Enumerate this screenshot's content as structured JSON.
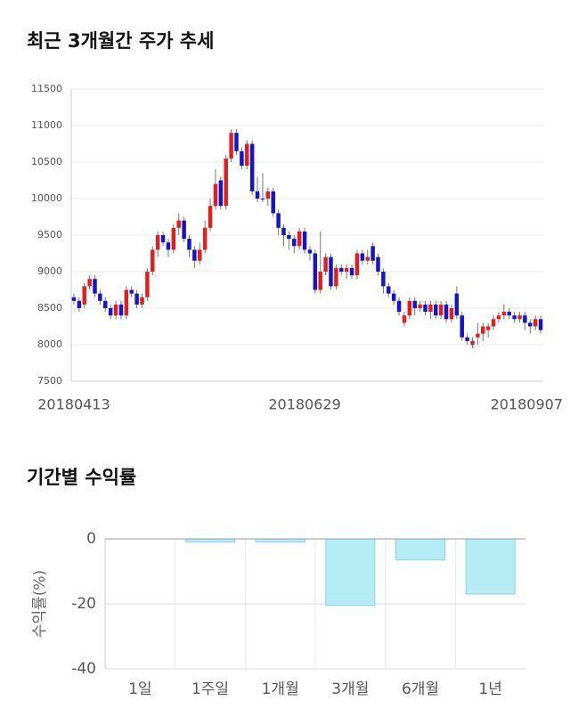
{
  "chart_data": [
    {
      "type": "candlestick",
      "title": "최근 3개월간 주가 추세",
      "categories": [
        "20180413",
        null,
        null,
        null,
        null,
        null,
        null,
        null,
        null,
        null,
        null,
        null,
        null,
        null,
        null,
        null,
        null,
        null,
        null,
        null,
        null,
        null,
        null,
        null,
        null,
        null,
        null,
        null,
        null,
        null,
        null,
        null,
        null,
        null,
        null,
        null,
        null,
        null,
        null,
        null,
        null,
        null,
        null,
        null,
        "20180629",
        null,
        null,
        null,
        null,
        null,
        null,
        null,
        null,
        null,
        null,
        null,
        null,
        null,
        null,
        null,
        null,
        null,
        null,
        null,
        null,
        null,
        null,
        null,
        null,
        null,
        null,
        null,
        null,
        null,
        null,
        null,
        null,
        null,
        null,
        null,
        null,
        null,
        null,
        null,
        null,
        null,
        null,
        null,
        null,
        "20180907"
      ],
      "open": [
        8650,
        8600,
        8550,
        8800,
        8900,
        8700,
        8600,
        8500,
        8400,
        8550,
        8400,
        8750,
        8700,
        8550,
        8650,
        9000,
        9300,
        9500,
        9400,
        9300,
        9600,
        9700,
        9450,
        9300,
        9150,
        9300,
        9600,
        9900,
        10250,
        9900,
        10550,
        10900,
        10650,
        10450,
        10750,
        10100,
        10000,
        10000,
        10100,
        9800,
        9600,
        9500,
        9450,
        9350,
        9550,
        9300,
        9250,
        8750,
        9000,
        9200,
        8800,
        9050,
        9000,
        9050,
        8950,
        9250,
        9150,
        9350,
        9200,
        9000,
        8800,
        8700,
        8600,
        8300,
        8400,
        8600,
        8500,
        8550,
        8450,
        8550,
        8400,
        8550,
        8350,
        8700,
        8400,
        8100,
        8000,
        8100,
        8150,
        8200,
        8250,
        8350,
        8400,
        8450,
        8400,
        8350,
        8400,
        8300,
        8250,
        8350
      ],
      "high": [
        8700,
        8650,
        8850,
        8950,
        8950,
        8750,
        8650,
        8550,
        8600,
        8600,
        8800,
        8800,
        8750,
        8700,
        9050,
        9350,
        9550,
        9550,
        9450,
        9650,
        9800,
        9750,
        9500,
        9350,
        9400,
        9700,
        10000,
        10400,
        10300,
        10600,
        10950,
        10950,
        10700,
        10800,
        10800,
        10300,
        10350,
        10150,
        10150,
        9850,
        9650,
        9550,
        9500,
        9600,
        9600,
        9350,
        9300,
        9550,
        9250,
        9250,
        9100,
        9100,
        9100,
        9100,
        9300,
        9300,
        9300,
        9400,
        9250,
        9050,
        8850,
        8750,
        8650,
        8450,
        8650,
        8650,
        8600,
        8600,
        8600,
        8600,
        8600,
        8600,
        8550,
        8800,
        8450,
        8150,
        8100,
        8300,
        8300,
        8300,
        8400,
        8450,
        8550,
        8500,
        8450,
        8450,
        8450,
        8350,
        8400,
        8400
      ],
      "low": [
        8550,
        8450,
        8500,
        8750,
        8650,
        8550,
        8450,
        8350,
        8350,
        8350,
        8350,
        8650,
        8500,
        8500,
        8600,
        8950,
        9200,
        9350,
        9200,
        9250,
        9500,
        9400,
        9200,
        9050,
        9100,
        9250,
        9550,
        9850,
        9850,
        9850,
        10500,
        10600,
        10400,
        10400,
        10050,
        9950,
        9950,
        9900,
        9750,
        9500,
        9350,
        9300,
        9250,
        9300,
        9250,
        9150,
        8700,
        8700,
        8950,
        8750,
        8750,
        8950,
        8900,
        8900,
        8900,
        9100,
        9100,
        9100,
        8950,
        8700,
        8650,
        8550,
        8400,
        8250,
        8350,
        8400,
        8450,
        8400,
        8350,
        8350,
        8350,
        8300,
        8300,
        8350,
        8050,
        8000,
        7950,
        8000,
        8050,
        8100,
        8200,
        8300,
        8350,
        8350,
        8300,
        8300,
        8200,
        8150,
        8200,
        8150
      ],
      "close": [
        8600,
        8500,
        8800,
        8900,
        8700,
        8600,
        8500,
        8400,
        8550,
        8400,
        8750,
        8700,
        8550,
        8650,
        9000,
        9300,
        9500,
        9400,
        9300,
        9600,
        9700,
        9450,
        9300,
        9150,
        9300,
        9600,
        9900,
        10200,
        9900,
        10550,
        10900,
        10650,
        10450,
        10750,
        10100,
        10000,
        10000,
        10100,
        9800,
        9600,
        9500,
        9450,
        9350,
        9550,
        9300,
        9250,
        8750,
        9000,
        9200,
        8800,
        9050,
        9000,
        9050,
        8950,
        9250,
        9150,
        9200,
        9150,
        9000,
        8800,
        8700,
        8600,
        8450,
        8400,
        8600,
        8500,
        8550,
        8450,
        8550,
        8400,
        8550,
        8350,
        8500,
        8400,
        8100,
        8050,
        8050,
        8150,
        8250,
        8250,
        8350,
        8400,
        8450,
        8400,
        8350,
        8400,
        8300,
        8250,
        8350,
        8200
      ],
      "up_color": "#e0201e",
      "down_color": "#1414c8",
      "ylim": [
        7500,
        11500
      ],
      "yticks": [
        7500,
        8000,
        8500,
        9000,
        9500,
        10000,
        10500,
        11000,
        11500
      ],
      "grid": true
    },
    {
      "type": "bar",
      "title": "기간별 수익률",
      "y_label": "수익률(%)",
      "categories": [
        "1일",
        "1주일",
        "1개월",
        "3개월",
        "6개월",
        "1년"
      ],
      "values": [
        0,
        -1,
        -1,
        -20.5,
        -6.5,
        -17
      ],
      "color": "#b3ecf4",
      "edge_color": "#8fd3df",
      "ylim": [
        -40,
        0
      ],
      "yticks": [
        0,
        -20,
        -40
      ],
      "grid": true
    }
  ]
}
